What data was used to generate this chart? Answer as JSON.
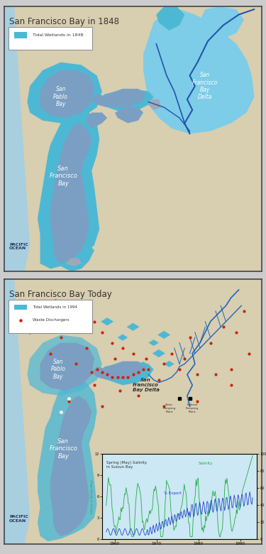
{
  "panel1_title": "San Francisco Bay in 1848",
  "panel2_title": "San Francisco Bay Today",
  "legend1_label": "Tidal Wetlands in 1848",
  "legend2_label1": "Tidal Wetlands in 1994",
  "legend2_label2": "Waste Dischargers",
  "bg_color": "#d8ceb0",
  "water_bay": "#7a9fc2",
  "water_tidal": "#4db8d4",
  "water_delta_light": "#7dcce8",
  "water_ocean": "#a8cfe0",
  "river_color": "#2255aa",
  "channel_color": "#2266bb",
  "text_dark": "#333333",
  "text_white": "#ffffff",
  "text_navy": "#223355",
  "waste_color": "#cc2200",
  "chart_bg": "#cce8f4",
  "chart_green": "#22aa44",
  "chart_blue": "#2244cc",
  "panel_border": "#444444",
  "fig_bg": "#cccccc"
}
